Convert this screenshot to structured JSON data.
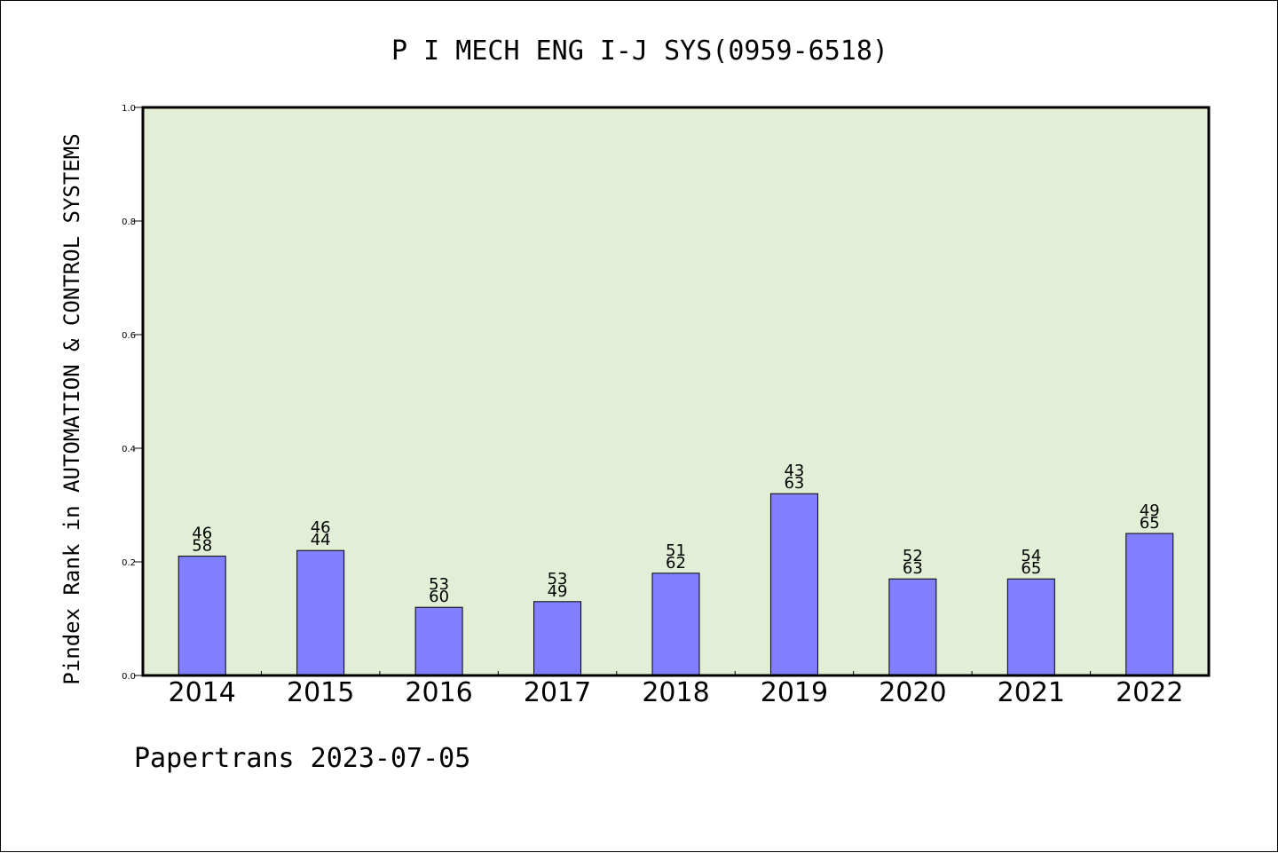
{
  "chart_data": {
    "type": "bar",
    "title": "P I MECH ENG I-J SYS(0959-6518)",
    "xlabel": "",
    "ylabel": "Pindex Rank in AUTOMATION & CONTROL SYSTEMS",
    "categories": [
      "2014",
      "2015",
      "2016",
      "2017",
      "2018",
      "2019",
      "2020",
      "2021",
      "2022"
    ],
    "values": [
      0.21,
      0.22,
      0.12,
      0.13,
      0.18,
      0.32,
      0.17,
      0.17,
      0.25
    ],
    "label_top": [
      "46",
      "46",
      "53",
      "53",
      "51",
      "43",
      "52",
      "54",
      "49"
    ],
    "label_bottom": [
      "58",
      "44",
      "60",
      "49",
      "62",
      "63",
      "63",
      "65",
      "65"
    ],
    "ylim": [
      0.0,
      1.0
    ],
    "yticks": [
      "0.0",
      "0.2",
      "0.4",
      "0.6",
      "0.8",
      "1.0"
    ],
    "grid": false,
    "colors": {
      "plot_background": "#e2efd6",
      "bar_fill": "#8080ff",
      "bar_stroke": "#000000",
      "axis": "#000000"
    }
  },
  "footer": {
    "text": "Papertrans 2023-07-05"
  }
}
